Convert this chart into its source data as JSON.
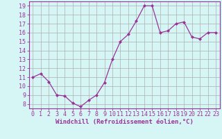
{
  "x": [
    0,
    1,
    2,
    3,
    4,
    5,
    6,
    7,
    8,
    9,
    10,
    11,
    12,
    13,
    14,
    15,
    16,
    17,
    18,
    19,
    20,
    21,
    22,
    23
  ],
  "y": [
    11.0,
    11.4,
    10.5,
    9.0,
    8.9,
    8.1,
    7.7,
    8.4,
    9.0,
    10.4,
    13.0,
    15.0,
    15.8,
    17.3,
    19.0,
    19.0,
    16.0,
    16.2,
    17.0,
    17.2,
    15.5,
    15.3,
    16.0,
    16.0
  ],
  "line_color": "#993399",
  "marker": "D",
  "marker_size": 2,
  "bg_color": "#d6f5f5",
  "grid_color": "#b0b0b0",
  "ylabel_values": [
    8,
    9,
    10,
    11,
    12,
    13,
    14,
    15,
    16,
    17,
    18,
    19
  ],
  "xlabel": "Windchill (Refroidissement éolien,°C)",
  "ylim": [
    7.5,
    19.5
  ],
  "xlim": [
    -0.5,
    23.5
  ],
  "xlabel_fontsize": 6.5,
  "tick_fontsize": 6.0,
  "axis_label_color": "#993399",
  "tick_label_color": "#993399",
  "spine_color": "#993399"
}
